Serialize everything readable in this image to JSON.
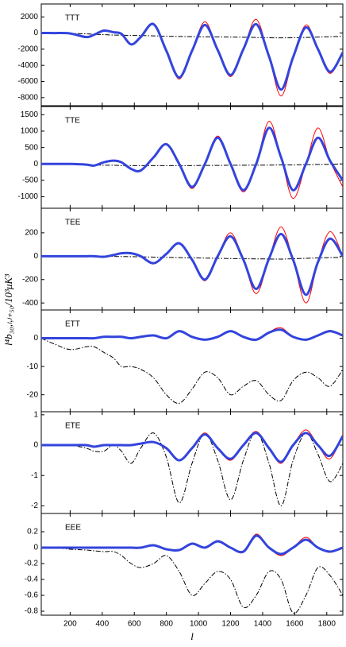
{
  "ylabel": "l⁴b₃₀,ₗ,ₗ₊₅₀/10³μK³",
  "chart_data": [
    {
      "type": "line",
      "title": "TTT",
      "x": [
        20,
        100,
        200,
        300,
        350,
        410,
        470,
        520,
        580,
        640,
        720,
        800,
        880,
        960,
        1040,
        1120,
        1200,
        1280,
        1360,
        1440,
        1515,
        1590,
        1670,
        1745,
        1820,
        1900
      ],
      "series": [
        {
          "color": "#ff0000",
          "linewidth": 1,
          "linestyle": "solid",
          "values": [
            0,
            0,
            -50,
            -500,
            -200,
            300,
            100,
            -100,
            -1450,
            -500,
            1200,
            -2200,
            -5700,
            -2200,
            1400,
            -2100,
            -5400,
            -2000,
            1700,
            -3000,
            -7800,
            -3100,
            1000,
            -2000,
            -5000,
            -2500
          ]
        },
        {
          "color": "#3344dd",
          "linewidth": 3,
          "linestyle": "solid",
          "values": [
            0,
            0,
            -50,
            -500,
            -200,
            300,
            100,
            -100,
            -1400,
            -500,
            1100,
            -2200,
            -5500,
            -2200,
            1000,
            -2100,
            -5200,
            -2000,
            1100,
            -2900,
            -7000,
            -3000,
            700,
            -2000,
            -4800,
            -2400
          ]
        },
        {
          "color": "#000000",
          "linewidth": 1,
          "linestyle": "dash-dot",
          "values": [
            0,
            0,
            -50,
            -100,
            -150,
            -200,
            -250,
            -250,
            -300,
            -300,
            -350,
            -400,
            -420,
            -450,
            -470,
            -480,
            -500,
            -520,
            -550,
            -580,
            -600,
            -580,
            -550,
            -500,
            -450,
            -400
          ]
        }
      ],
      "xlim": [
        20,
        1900
      ],
      "ylim": [
        -9000,
        3600
      ],
      "xticks": [
        200,
        400,
        600,
        800,
        1000,
        1200,
        1400,
        1600,
        1800
      ],
      "yticks": [
        2000,
        0,
        -2000,
        -4000,
        -6000,
        -8000
      ]
    },
    {
      "type": "line",
      "title": "TTE",
      "x": [
        20,
        100,
        200,
        300,
        350,
        410,
        470,
        520,
        580,
        640,
        720,
        800,
        880,
        960,
        1040,
        1120,
        1200,
        1280,
        1360,
        1440,
        1515,
        1590,
        1670,
        1745,
        1820,
        1900
      ],
      "series": [
        {
          "color": "#ff0000",
          "linewidth": 1,
          "linestyle": "solid",
          "values": [
            0,
            0,
            0,
            -20,
            -50,
            50,
            100,
            50,
            -150,
            -200,
            200,
            620,
            0,
            -750,
            0,
            850,
            0,
            -850,
            0,
            1300,
            200,
            -1050,
            0,
            1100,
            100,
            -700
          ]
        },
        {
          "color": "#3344dd",
          "linewidth": 3,
          "linestyle": "solid",
          "values": [
            0,
            0,
            0,
            -20,
            -50,
            50,
            100,
            50,
            -150,
            -200,
            200,
            600,
            0,
            -700,
            0,
            800,
            0,
            -800,
            0,
            1100,
            200,
            -800,
            0,
            800,
            100,
            -500
          ]
        },
        {
          "color": "#000000",
          "linewidth": 1,
          "linestyle": "dash-dot",
          "values": [
            0,
            0,
            -10,
            -30,
            -30,
            -40,
            -40,
            -50,
            -50,
            -50,
            -50,
            -50,
            -50,
            -50,
            -45,
            -45,
            -40,
            -40,
            -35,
            -35,
            -30,
            -30,
            -20,
            -15,
            -10,
            0
          ]
        }
      ],
      "xlim": [
        20,
        1900
      ],
      "ylim": [
        -1350,
        1750
      ],
      "xticks": [
        200,
        400,
        600,
        800,
        1000,
        1200,
        1400,
        1600,
        1800
      ],
      "yticks": [
        1500,
        1000,
        500,
        0,
        -500,
        -1000
      ]
    },
    {
      "type": "line",
      "title": "TEE",
      "x": [
        20,
        100,
        200,
        300,
        350,
        410,
        470,
        520,
        580,
        640,
        720,
        800,
        880,
        960,
        1040,
        1120,
        1200,
        1280,
        1360,
        1440,
        1515,
        1590,
        1670,
        1745,
        1820,
        1900
      ],
      "series": [
        {
          "color": "#ff0000",
          "linewidth": 1,
          "linestyle": "solid",
          "values": [
            0,
            0,
            0,
            0,
            0,
            -5,
            10,
            25,
            25,
            0,
            -60,
            20,
            115,
            -30,
            -210,
            0,
            200,
            -30,
            -320,
            -20,
            250,
            -30,
            -400,
            -50,
            210,
            0
          ]
        },
        {
          "color": "#3344dd",
          "linewidth": 3,
          "linestyle": "solid",
          "values": [
            0,
            0,
            0,
            0,
            0,
            -5,
            10,
            25,
            25,
            0,
            -60,
            20,
            110,
            -30,
            -200,
            0,
            170,
            -30,
            -280,
            -20,
            190,
            -30,
            -330,
            -50,
            150,
            0
          ]
        },
        {
          "color": "#000000",
          "linewidth": 1,
          "linestyle": "dash-dot",
          "values": [
            0,
            0,
            0,
            0,
            0,
            0,
            -2,
            -3,
            -4,
            -5,
            -8,
            -10,
            -12,
            -14,
            -16,
            -18,
            -20,
            -22,
            -23,
            -24,
            -25,
            -22,
            -18,
            -15,
            -12,
            -10
          ]
        }
      ],
      "xlim": [
        20,
        1900
      ],
      "ylim": [
        -460,
        410
      ],
      "xticks": [
        200,
        400,
        600,
        800,
        1000,
        1200,
        1400,
        1600,
        1800
      ],
      "yticks": [
        200,
        0,
        -200,
        -400
      ]
    },
    {
      "type": "line",
      "title": "ETT",
      "x": [
        20,
        100,
        200,
        300,
        350,
        410,
        470,
        520,
        580,
        640,
        720,
        800,
        880,
        960,
        1040,
        1120,
        1200,
        1280,
        1360,
        1440,
        1515,
        1590,
        1670,
        1745,
        1820,
        1900
      ],
      "series": [
        {
          "color": "#ff0000",
          "linewidth": 1,
          "linestyle": "solid",
          "values": [
            0,
            0,
            0,
            0,
            0,
            0.5,
            0.5,
            0.5,
            0,
            0.5,
            1,
            0,
            2.7,
            0.5,
            -0.5,
            0.5,
            2.7,
            0.5,
            -0.5,
            2.2,
            3.7,
            0.5,
            -0.5,
            1,
            2.8,
            1
          ]
        },
        {
          "color": "#3344dd",
          "linewidth": 3,
          "linestyle": "solid",
          "values": [
            0,
            0,
            0,
            0,
            0,
            0.5,
            0.5,
            0.5,
            0,
            0.5,
            1,
            0,
            2.5,
            0.5,
            -0.5,
            0.5,
            2.5,
            0.5,
            -0.5,
            2,
            3,
            0.5,
            -0.5,
            1,
            2.5,
            1
          ]
        },
        {
          "color": "#000000",
          "linewidth": 1,
          "linestyle": "dash-dot",
          "values": [
            0,
            -2,
            -4,
            -3,
            -3,
            -5,
            -7,
            -10,
            -10,
            -11,
            -14,
            -20,
            -23,
            -18,
            -12,
            -14,
            -20,
            -17,
            -15,
            -20,
            -22,
            -15,
            -12,
            -14,
            -17,
            -11
          ]
        }
      ],
      "xlim": [
        20,
        1900
      ],
      "ylim": [
        -26,
        10
      ],
      "xticks": [
        200,
        400,
        600,
        800,
        1000,
        1200,
        1400,
        1600,
        1800
      ],
      "yticks": [
        0,
        -10,
        -20
      ]
    },
    {
      "type": "line",
      "title": "ETE",
      "x": [
        20,
        100,
        200,
        300,
        350,
        410,
        470,
        520,
        580,
        640,
        720,
        800,
        880,
        960,
        1040,
        1120,
        1200,
        1280,
        1360,
        1440,
        1515,
        1590,
        1670,
        1745,
        1820,
        1900
      ],
      "series": [
        {
          "color": "#ff0000",
          "linewidth": 1,
          "linestyle": "solid",
          "values": [
            0,
            0,
            0,
            0,
            -0.05,
            0,
            0,
            0,
            0,
            0.05,
            0.1,
            -0.1,
            -0.5,
            -0.1,
            0.4,
            -0.1,
            -0.5,
            0,
            0.45,
            -0.1,
            -0.6,
            0,
            0.5,
            0,
            -0.45,
            0.35
          ]
        },
        {
          "color": "#3344dd",
          "linewidth": 3,
          "linestyle": "solid",
          "values": [
            0,
            0,
            0,
            0,
            -0.05,
            0,
            0,
            0,
            0,
            0.05,
            0.1,
            -0.1,
            -0.5,
            -0.1,
            0.35,
            -0.1,
            -0.45,
            0,
            0.4,
            -0.1,
            -0.55,
            0,
            0.4,
            0,
            -0.35,
            0.3
          ]
        },
        {
          "color": "#000000",
          "linewidth": 1,
          "linestyle": "dash-dot",
          "values": [
            0,
            0,
            0,
            -0.1,
            -0.2,
            -0.2,
            0,
            -0.2,
            -0.6,
            -0.1,
            0.4,
            -0.4,
            -1.9,
            -0.6,
            0.4,
            -0.5,
            -1.8,
            -0.5,
            0.45,
            -0.6,
            -2.0,
            -0.5,
            0.4,
            -0.3,
            -1.2,
            -0.6
          ]
        }
      ],
      "xlim": [
        20,
        1900
      ],
      "ylim": [
        -2.25,
        1.1
      ],
      "xticks": [
        200,
        400,
        600,
        800,
        1000,
        1200,
        1400,
        1600,
        1800
      ],
      "yticks": [
        1,
        0,
        -1,
        -2
      ]
    },
    {
      "type": "line",
      "title": "EEE",
      "xlabel": "l",
      "x": [
        20,
        100,
        200,
        300,
        350,
        410,
        470,
        520,
        580,
        640,
        720,
        800,
        880,
        960,
        1040,
        1120,
        1200,
        1280,
        1360,
        1440,
        1515,
        1590,
        1670,
        1745,
        1820,
        1900
      ],
      "series": [
        {
          "color": "#ff0000",
          "linewidth": 1,
          "linestyle": "solid",
          "values": [
            0,
            0,
            0,
            0,
            0,
            0,
            0,
            0,
            0,
            0,
            0.03,
            -0.02,
            -0.03,
            0.05,
            0,
            0.09,
            0,
            -0.06,
            0.17,
            0,
            -0.1,
            0,
            0.13,
            0,
            -0.06,
            0
          ]
        },
        {
          "color": "#3344dd",
          "linewidth": 3,
          "linestyle": "solid",
          "values": [
            0,
            0,
            0,
            0,
            0,
            0,
            0,
            0,
            0,
            0,
            0.03,
            -0.02,
            -0.03,
            0.05,
            0,
            0.08,
            0,
            -0.05,
            0.15,
            0,
            -0.08,
            0,
            0.1,
            0,
            -0.05,
            0
          ]
        },
        {
          "color": "#000000",
          "linewidth": 1,
          "linestyle": "dash-dot",
          "values": [
            0,
            0,
            -0.02,
            -0.03,
            -0.04,
            -0.05,
            -0.05,
            -0.1,
            -0.2,
            -0.25,
            -0.2,
            -0.1,
            -0.3,
            -0.6,
            -0.45,
            -0.3,
            -0.4,
            -0.75,
            -0.6,
            -0.3,
            -0.4,
            -0.82,
            -0.6,
            -0.25,
            -0.35,
            -0.6
          ]
        }
      ],
      "xlim": [
        20,
        1900
      ],
      "ylim": [
        -0.85,
        0.43
      ],
      "xticks": [
        200,
        400,
        600,
        800,
        1000,
        1200,
        1400,
        1600,
        1800
      ],
      "yticks": [
        0.2,
        0,
        -0.2,
        -0.4,
        -0.6,
        -0.8
      ]
    }
  ]
}
